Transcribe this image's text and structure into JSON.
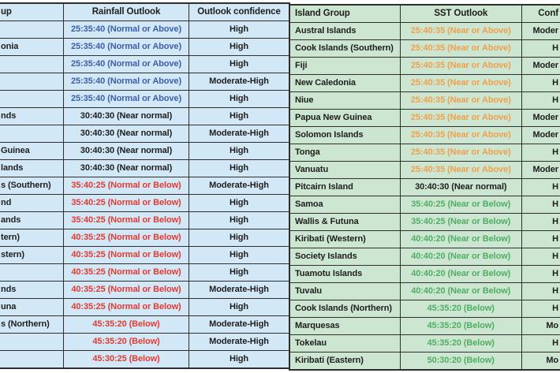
{
  "palette": {
    "left_bg": "#d3e8f6",
    "right_bg": "#cde6d1",
    "border": "#2e2e2e",
    "blue": "#3c5fa8",
    "black": "#1d1d1d",
    "red": "#e13a31",
    "orange": "#eea04e",
    "green": "#4fae63"
  },
  "left_table": {
    "headers": [
      "up",
      "Rainfall Outlook",
      "Outlook confidence"
    ],
    "rows": [
      {
        "group": "",
        "outlook": "25:35:40 (Normal or Above)",
        "tone": "blue",
        "confidence": "High"
      },
      {
        "group": "onia",
        "outlook": "25:35:40 (Normal or Above)",
        "tone": "blue",
        "confidence": "High"
      },
      {
        "group": "",
        "outlook": "25:35:40 (Normal or Above)",
        "tone": "blue",
        "confidence": "High"
      },
      {
        "group": "",
        "outlook": "25:35:40 (Normal or Above)",
        "tone": "blue",
        "confidence": "Moderate-High"
      },
      {
        "group": "",
        "outlook": "25:35:40 (Normal or Above)",
        "tone": "blue",
        "confidence": "High"
      },
      {
        "group": "nds",
        "outlook": "30:40:30 (Near normal)",
        "tone": "black",
        "confidence": "High"
      },
      {
        "group": "",
        "outlook": "30:40:30 (Near normal)",
        "tone": "black",
        "confidence": "Moderate-High"
      },
      {
        "group": "Guinea",
        "outlook": "30:40:30 (Near normal)",
        "tone": "black",
        "confidence": "High"
      },
      {
        "group": "lands",
        "outlook": "30:40:30 (Near normal)",
        "tone": "black",
        "confidence": "High"
      },
      {
        "group": "s (Southern)",
        "outlook": "35:40:25 (Normal or Below)",
        "tone": "red",
        "confidence": "Moderate-High"
      },
      {
        "group": "nd",
        "outlook": "35:40:25 (Normal or Below)",
        "tone": "red",
        "confidence": "High"
      },
      {
        "group": "ands",
        "outlook": "35:40:25 (Normal or Below)",
        "tone": "red",
        "confidence": "High"
      },
      {
        "group": "tern)",
        "outlook": "40:35:25 (Normal or Below)",
        "tone": "red",
        "confidence": "High"
      },
      {
        "group": "stern)",
        "outlook": "40:35:25 (Normal or Below)",
        "tone": "red",
        "confidence": "High"
      },
      {
        "group": "",
        "outlook": "40:35:25 (Normal or Below)",
        "tone": "red",
        "confidence": "High"
      },
      {
        "group": "nds",
        "outlook": "40:35:25 (Normal or Below)",
        "tone": "red",
        "confidence": "Moderate-High"
      },
      {
        "group": "una",
        "outlook": "40:35:25 (Normal or Below)",
        "tone": "red",
        "confidence": "High"
      },
      {
        "group": "s (Northern)",
        "outlook": "45:35:20 (Below)",
        "tone": "red",
        "confidence": "Moderate-High"
      },
      {
        "group": "",
        "outlook": "45:35:20 (Below)",
        "tone": "red",
        "confidence": "Moderate-High"
      },
      {
        "group": "",
        "outlook": "45:30:25 (Below)",
        "tone": "red",
        "confidence": "High"
      }
    ]
  },
  "right_table": {
    "headers": [
      "Island Group",
      "SST Outlook",
      "Conf"
    ],
    "rows": [
      {
        "group": "Austral Islands",
        "outlook": "25:40:35 (Near or Above)",
        "tone": "orange",
        "confidence": "Moder"
      },
      {
        "group": "Cook Islands (Southern)",
        "outlook": "25:40:35 (Near or Above)",
        "tone": "orange",
        "confidence": "H"
      },
      {
        "group": "Fiji",
        "outlook": "25:40:35 (Near or Above)",
        "tone": "orange",
        "confidence": "Moder"
      },
      {
        "group": "New Caledonia",
        "outlook": "25:40:35 (Near or Above)",
        "tone": "orange",
        "confidence": "H"
      },
      {
        "group": "Niue",
        "outlook": "25:40:35 (Near or Above)",
        "tone": "orange",
        "confidence": "H"
      },
      {
        "group": "Papua New Guinea",
        "outlook": "25:40:35 (Near or Above)",
        "tone": "orange",
        "confidence": "Moder"
      },
      {
        "group": "Solomon Islands",
        "outlook": "25:40:35 (Near or Above)",
        "tone": "orange",
        "confidence": "Moder"
      },
      {
        "group": "Tonga",
        "outlook": "25:40:35 (Near or Above)",
        "tone": "orange",
        "confidence": "H"
      },
      {
        "group": "Vanuatu",
        "outlook": "25:40:35 (Near or Above)",
        "tone": "orange",
        "confidence": "Moder"
      },
      {
        "group": "Pitcairn Island",
        "outlook": "30:40:30 (Near normal)",
        "tone": "black",
        "confidence": "H"
      },
      {
        "group": "Samoa",
        "outlook": "35:40:25 (Near or Below)",
        "tone": "green",
        "confidence": "H"
      },
      {
        "group": "Wallis & Futuna",
        "outlook": "35:40:25 (Near or Below)",
        "tone": "green",
        "confidence": "H"
      },
      {
        "group": "Kiribati (Western)",
        "outlook": "40:40:20 (Near or Below)",
        "tone": "green",
        "confidence": "H"
      },
      {
        "group": "Society Islands",
        "outlook": "40:40:20 (Near or Below)",
        "tone": "green",
        "confidence": "H"
      },
      {
        "group": "Tuamotu Islands",
        "outlook": "40:40:20 (Near or Below)",
        "tone": "green",
        "confidence": "H"
      },
      {
        "group": "Tuvalu",
        "outlook": "40:40:20 (Near or Below)",
        "tone": "green",
        "confidence": "H"
      },
      {
        "group": "Cook Islands (Northern)",
        "outlook": "45:35:20 (Below)",
        "tone": "green",
        "confidence": "H"
      },
      {
        "group": "Marquesas",
        "outlook": "45:35:20 (Below)",
        "tone": "green",
        "confidence": "Mo"
      },
      {
        "group": "Tokelau",
        "outlook": "45:35:20 (Below)",
        "tone": "green",
        "confidence": "H"
      },
      {
        "group": "Kiribati (Eastern)",
        "outlook": "50:30:20 (Below)",
        "tone": "green",
        "confidence": "Mo"
      }
    ]
  }
}
